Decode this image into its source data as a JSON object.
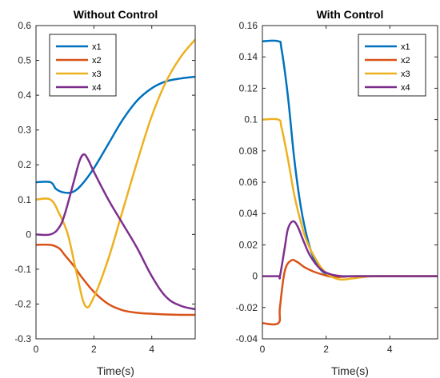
{
  "chart_data": [
    {
      "type": "line",
      "title": "Without Control",
      "xlabel": "Time(s)",
      "ylabel": "",
      "xlim": [
        0,
        5.5
      ],
      "ylim": [
        -0.3,
        0.6
      ],
      "xticks": [
        0,
        2,
        4
      ],
      "xtick_labels": [
        "0",
        "2",
        "4"
      ],
      "yticks": [
        -0.3,
        -0.2,
        -0.1,
        0,
        0.1,
        0.2,
        0.3,
        0.4,
        0.5,
        0.6
      ],
      "ytick_labels": [
        "-0.3",
        "-0.2",
        "-0.1",
        "0",
        "0.1",
        "0.2",
        "0.3",
        "0.4",
        "0.5",
        "0.6"
      ],
      "grid": false,
      "legend_position": "top-left",
      "series": [
        {
          "name": "x1",
          "color": "#0072BD",
          "x": [
            0,
            0.5,
            0.7,
            1.0,
            1.3,
            1.6,
            2.0,
            2.5,
            3.0,
            3.5,
            4.0,
            4.5,
            5.0,
            5.5
          ],
          "y": [
            0.15,
            0.15,
            0.13,
            0.12,
            0.123,
            0.145,
            0.19,
            0.26,
            0.33,
            0.385,
            0.42,
            0.44,
            0.448,
            0.453
          ]
        },
        {
          "name": "x2",
          "color": "#D95319",
          "x": [
            0,
            0.5,
            0.8,
            1.0,
            1.3,
            1.6,
            2.0,
            2.5,
            3.0,
            3.5,
            4.0,
            4.5,
            5.0,
            5.5
          ],
          "y": [
            -0.03,
            -0.03,
            -0.04,
            -0.06,
            -0.09,
            -0.125,
            -0.165,
            -0.2,
            -0.218,
            -0.225,
            -0.228,
            -0.23,
            -0.231,
            -0.231
          ]
        },
        {
          "name": "x3",
          "color": "#EDB120",
          "x": [
            0,
            0.5,
            0.8,
            1.1,
            1.4,
            1.7,
            2.0,
            2.5,
            3.0,
            3.5,
            4.0,
            4.5,
            5.0,
            5.5
          ],
          "y": [
            0.1,
            0.1,
            0.06,
            0.0,
            -0.11,
            -0.205,
            -0.18,
            -0.07,
            0.07,
            0.21,
            0.34,
            0.44,
            0.51,
            0.56
          ]
        },
        {
          "name": "x4",
          "color": "#7E2F8E",
          "x": [
            0,
            0.5,
            0.8,
            1.0,
            1.3,
            1.5,
            1.65,
            1.8,
            2.0,
            2.5,
            3.0,
            3.5,
            4.0,
            4.5,
            5.0,
            5.5
          ],
          "y": [
            0.0,
            0.0,
            0.02,
            0.06,
            0.15,
            0.21,
            0.23,
            0.215,
            0.18,
            0.1,
            0.03,
            -0.04,
            -0.12,
            -0.18,
            -0.205,
            -0.215
          ]
        }
      ]
    },
    {
      "type": "line",
      "title": "With Control",
      "xlabel": "Time(s)",
      "ylabel": "",
      "xlim": [
        0,
        5.5
      ],
      "ylim": [
        -0.04,
        0.16
      ],
      "xticks": [
        0,
        2,
        4
      ],
      "xtick_labels": [
        "0",
        "2",
        "4"
      ],
      "yticks": [
        -0.04,
        -0.02,
        0,
        0.02,
        0.04,
        0.06,
        0.08,
        0.1,
        0.12,
        0.14,
        0.16
      ],
      "ytick_labels": [
        "-0.04",
        "-0.02",
        "0",
        "0.02",
        "0.04",
        "0.06",
        "0.08",
        "0.1",
        "0.12",
        "0.14",
        "0.16"
      ],
      "grid": false,
      "legend_position": "top-right",
      "series": [
        {
          "name": "x1",
          "color": "#0072BD",
          "x": [
            0,
            0.5,
            0.6,
            0.8,
            1.0,
            1.2,
            1.4,
            1.6,
            1.8,
            2.0,
            2.3,
            2.6,
            3.0,
            5.5
          ],
          "y": [
            0.15,
            0.15,
            0.145,
            0.115,
            0.075,
            0.045,
            0.025,
            0.012,
            0.005,
            0.0015,
            0.0,
            0.0,
            0.0,
            0.0
          ]
        },
        {
          "name": "x2",
          "color": "#D95319",
          "x": [
            0,
            0.5,
            0.55,
            0.7,
            0.9,
            1.1,
            1.3,
            1.6,
            1.9,
            2.2,
            2.6,
            3.0,
            5.5
          ],
          "y": [
            -0.03,
            -0.03,
            -0.02,
            0.003,
            0.01,
            0.009,
            0.006,
            0.003,
            0.001,
            -0.0005,
            -0.0003,
            0.0,
            0.0
          ]
        },
        {
          "name": "x3",
          "color": "#EDB120",
          "x": [
            0,
            0.5,
            0.6,
            0.8,
            1.0,
            1.2,
            1.4,
            1.7,
            2.0,
            2.4,
            2.8,
            3.2,
            3.6,
            5.5
          ],
          "y": [
            0.1,
            0.1,
            0.095,
            0.075,
            0.052,
            0.035,
            0.022,
            0.01,
            0.002,
            -0.002,
            -0.0015,
            -0.0005,
            0.0,
            0.0
          ]
        },
        {
          "name": "x4",
          "color": "#7E2F8E",
          "x": [
            0,
            0.5,
            0.55,
            0.7,
            0.8,
            0.95,
            1.1,
            1.3,
            1.5,
            1.8,
            2.1,
            2.5,
            3.0,
            5.5
          ],
          "y": [
            0.0,
            0.0,
            0.0,
            0.018,
            0.03,
            0.035,
            0.032,
            0.022,
            0.013,
            0.005,
            0.0015,
            0.0,
            0.0,
            0.0
          ]
        }
      ]
    }
  ]
}
